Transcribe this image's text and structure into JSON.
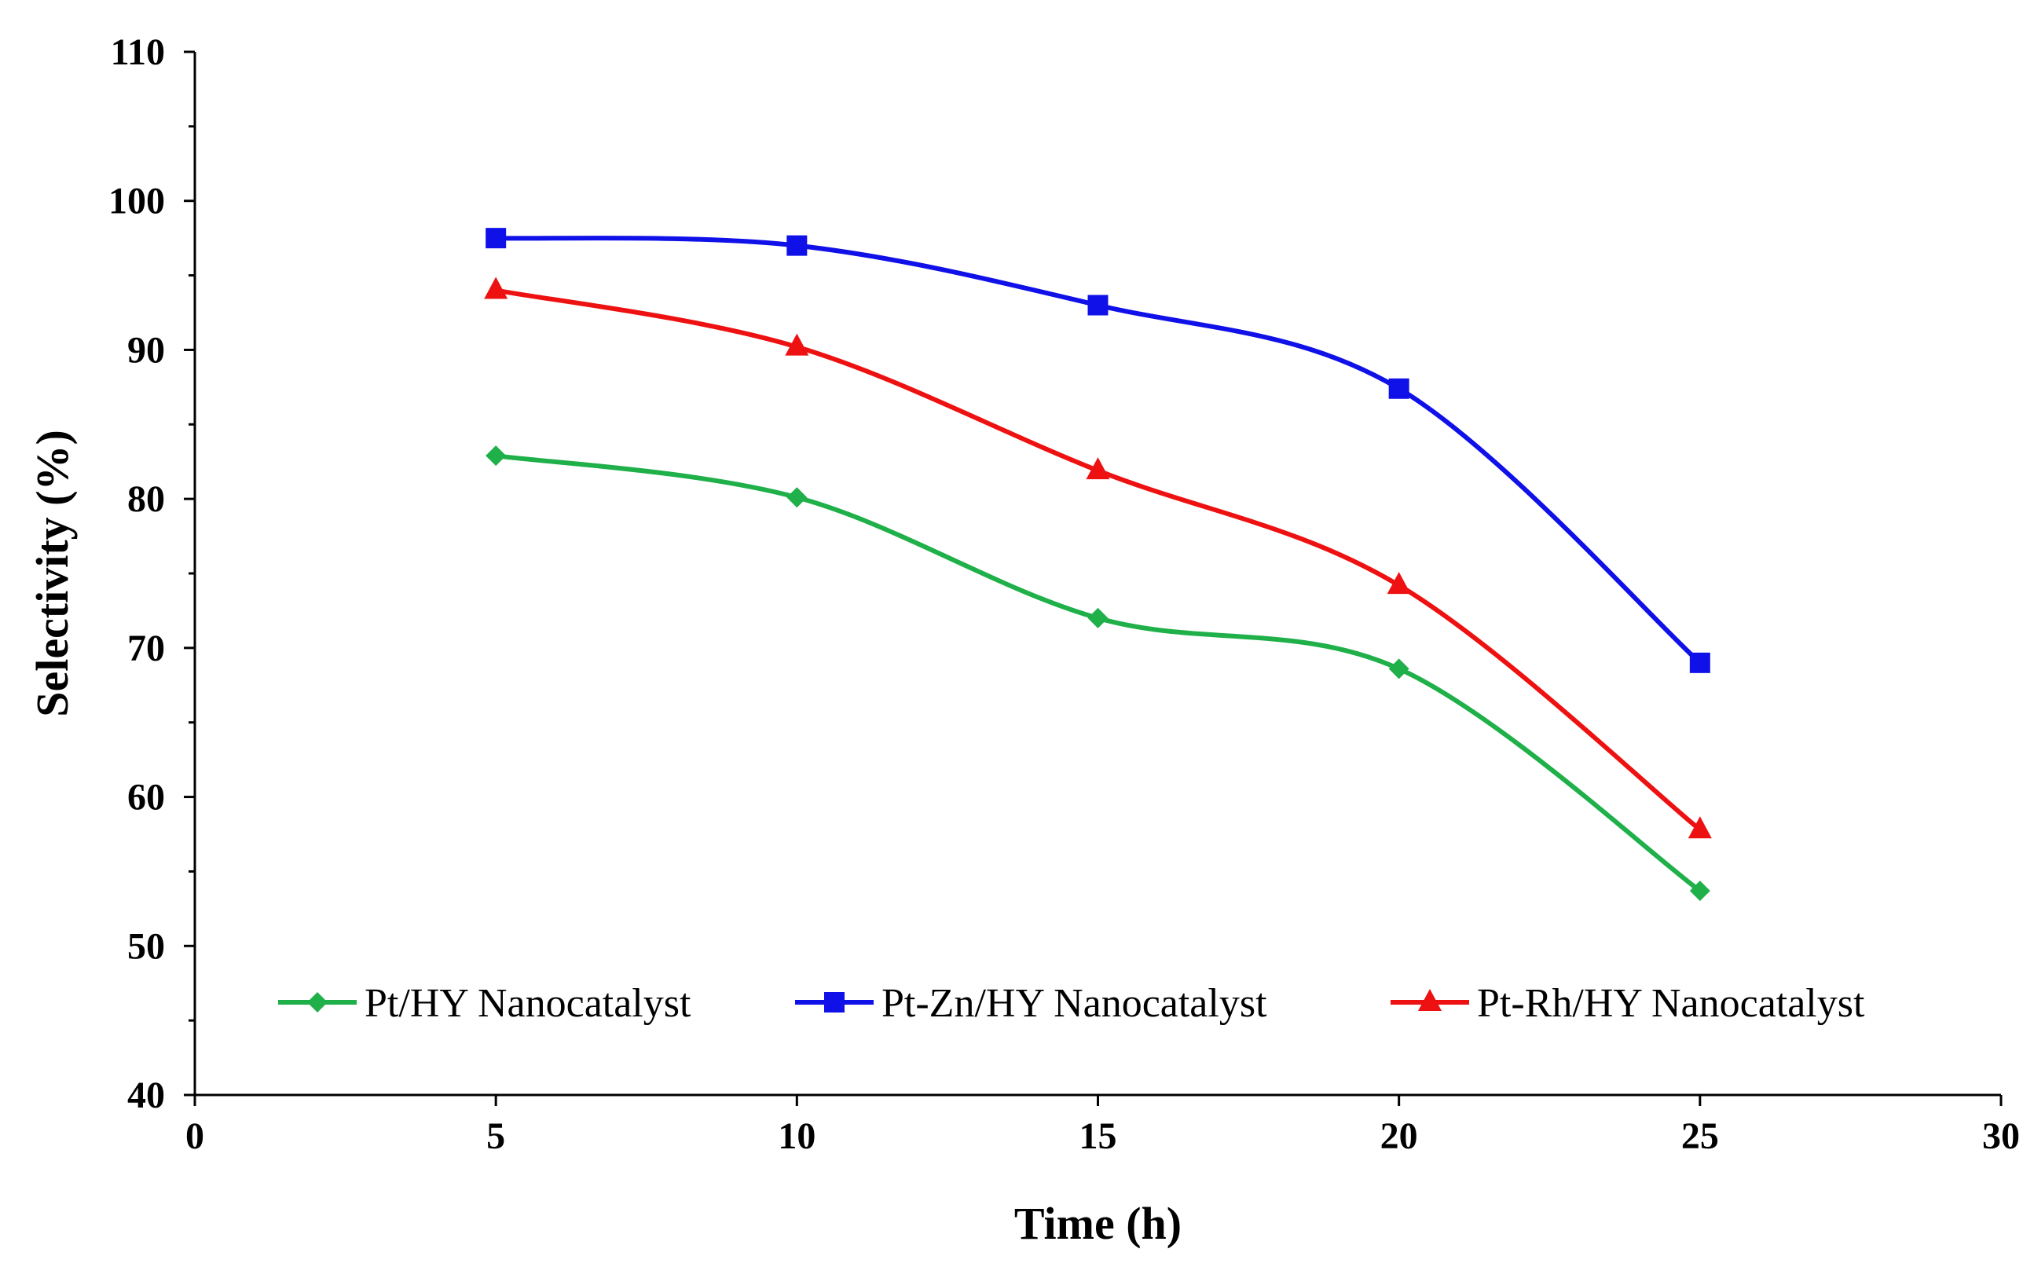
{
  "chart_data": {
    "type": "line",
    "title": "",
    "xlabel": "Time (h)",
    "ylabel": "Selectivity (%)",
    "xlim": [
      0,
      30
    ],
    "ylim": [
      40,
      110
    ],
    "xticks": [
      0,
      5,
      10,
      15,
      20,
      25,
      30
    ],
    "yticks": [
      40,
      50,
      60,
      70,
      80,
      90,
      100,
      110
    ],
    "grid": false,
    "legend_position": "bottom-inside",
    "series": [
      {
        "name": "Pt/HY Nanocatalyst",
        "color": "#1fb04a",
        "marker": "diamond",
        "x": [
          5,
          10,
          15,
          20,
          25
        ],
        "y": [
          82.9,
          80.1,
          72.0,
          68.6,
          53.7
        ]
      },
      {
        "name": "Pt-Zn/HY Nanocatalyst",
        "color": "#1010e8",
        "marker": "square",
        "x": [
          5,
          10,
          15,
          20,
          25
        ],
        "y": [
          97.5,
          97.0,
          93.0,
          87.4,
          69.0
        ]
      },
      {
        "name": "Pt-Rh/HY Nanocatalyst",
        "color": "#ee1111",
        "marker": "triangle",
        "x": [
          5,
          10,
          15,
          20,
          25
        ],
        "y": [
          94.0,
          90.2,
          81.9,
          74.2,
          57.8
        ]
      }
    ]
  }
}
